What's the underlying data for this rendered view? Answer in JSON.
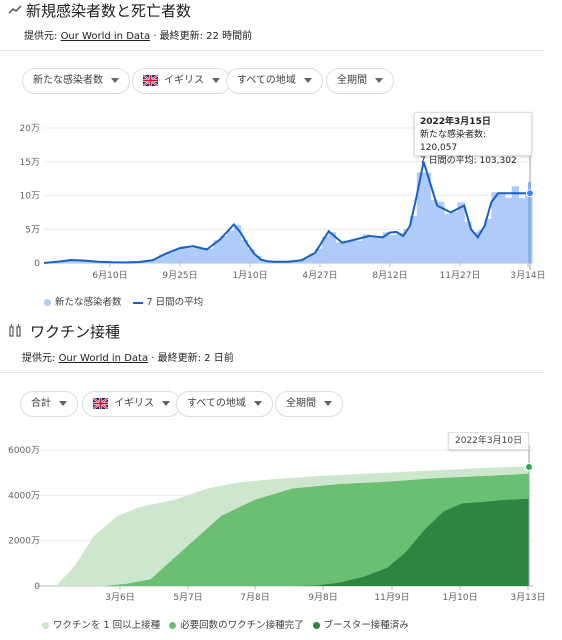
{
  "cases": {
    "title": "新規感染者数と死亡者数",
    "source_prefix": "提供元: ",
    "source_link": "Our World in Data",
    "source_sep": " · ",
    "updated": "最終更新: 22 時間前",
    "filters": [
      "新たな感染者数",
      "イギリス",
      "すべての地域",
      "全期間"
    ],
    "tooltip": {
      "date": "2022年3月15日",
      "cases_label": "新たな感染者数: 120,057",
      "avg_label": "7 日間の平均: 103,302"
    },
    "legend": {
      "new_cases": "新たな感染者数",
      "avg": "7 日間の平均"
    },
    "colors": {
      "bars": "#aecbfa",
      "line": "#1a5fc4"
    }
  },
  "vaccine": {
    "title": "ワクチン接種",
    "source_prefix": "提供元: ",
    "source_link": "Our World in Data",
    "source_sep": " · ",
    "updated": "最終更新: 2 日前",
    "filters": [
      "合計",
      "イギリス",
      "すべての地域",
      "全期間"
    ],
    "tooltip_date": "2022年3月10日",
    "legend": {
      "one_dose": "ワクチンを 1 回以上接種",
      "full": "必要回数のワクチン接種完了",
      "booster": "ブースター接種済み"
    },
    "colors": {
      "one_dose": "#cde7cf",
      "full": "#6abf73",
      "booster": "#2e8540"
    }
  },
  "chart_data": [
    {
      "type": "area",
      "title": "新規感染者数と死亡者数",
      "ytick_labels": [
        "0",
        "5万",
        "10万",
        "15万",
        "20万"
      ],
      "ylim": [
        0,
        200000
      ],
      "xtick_labels": [
        "6月10日",
        "9月25日",
        "1月10日",
        "4月27日",
        "8月12日",
        "11月27日",
        "3月14日"
      ],
      "series": [
        {
          "name": "7 日間の平均",
          "x_index": [
            0,
            2,
            4,
            6,
            8,
            10,
            12,
            14,
            16,
            18,
            20,
            22,
            24,
            26,
            28,
            29,
            30,
            31,
            32,
            33,
            34,
            35,
            36,
            38,
            40,
            42,
            44,
            46,
            48,
            50,
            51,
            52,
            53,
            54,
            55,
            56,
            58,
            60,
            62,
            63,
            64,
            65,
            66,
            67,
            68,
            69,
            70,
            71,
            72
          ],
          "values": [
            0,
            2000,
            4500,
            3500,
            2000,
            1000,
            800,
            1500,
            4000,
            14000,
            22000,
            25000,
            20000,
            35000,
            57000,
            45000,
            28000,
            14000,
            5000,
            2500,
            2000,
            2000,
            2000,
            4000,
            15000,
            47000,
            30000,
            35000,
            40000,
            38000,
            45000,
            46000,
            40000,
            55000,
            100000,
            150000,
            85000,
            75000,
            85000,
            50000,
            38000,
            55000,
            90000,
            103302,
            103302,
            103302,
            103302,
            103302,
            103302
          ]
        },
        {
          "name": "新たな感染者数",
          "values": [
            120057
          ]
        }
      ],
      "tooltip": {
        "date": "2022年3月15日",
        "new_cases": 120057,
        "avg": 103302
      },
      "legend_position": "bottom-left"
    },
    {
      "type": "area",
      "title": "ワクチン接種",
      "ytick_labels": [
        "0",
        "2000万",
        "4000万",
        "6000万"
      ],
      "ylim": [
        0,
        60000000
      ],
      "xtick_labels": [
        "3月6日",
        "5月7日",
        "7月8日",
        "9月8日",
        "11月9日",
        "1月10日",
        "3月13日"
      ],
      "series": [
        {
          "name": "ワクチンを 1 回以上接種",
          "x_frac": [
            0,
            0.04,
            0.08,
            0.13,
            0.18,
            0.25,
            0.32,
            0.38,
            0.45,
            0.55,
            0.65,
            0.75,
            0.85,
            0.95,
            1
          ],
          "values": [
            0,
            9000000,
            22000000,
            31000000,
            35000000,
            38000000,
            43000000,
            45500000,
            47000000,
            48500000,
            49500000,
            50500000,
            51500000,
            52500000,
            52700000
          ]
        },
        {
          "name": "必要回数のワクチン接種完了",
          "x_frac": [
            0,
            0.1,
            0.15,
            0.2,
            0.28,
            0.35,
            0.42,
            0.5,
            0.6,
            0.7,
            0.8,
            0.9,
            1
          ],
          "values": [
            0,
            0,
            1000000,
            3000000,
            18000000,
            31000000,
            38000000,
            43000000,
            45000000,
            46000000,
            47500000,
            48500000,
            49500000
          ]
        },
        {
          "name": "ブースター接種済み",
          "x_frac": [
            0,
            0.5,
            0.55,
            0.6,
            0.65,
            0.7,
            0.74,
            0.78,
            0.82,
            0.86,
            0.9,
            0.95,
            1
          ],
          "values": [
            0,
            0,
            200000,
            1500000,
            4000000,
            8000000,
            15000000,
            25000000,
            33000000,
            36500000,
            37000000,
            38000000,
            38500000
          ]
        }
      ],
      "legend_position": "bottom-left"
    }
  ]
}
